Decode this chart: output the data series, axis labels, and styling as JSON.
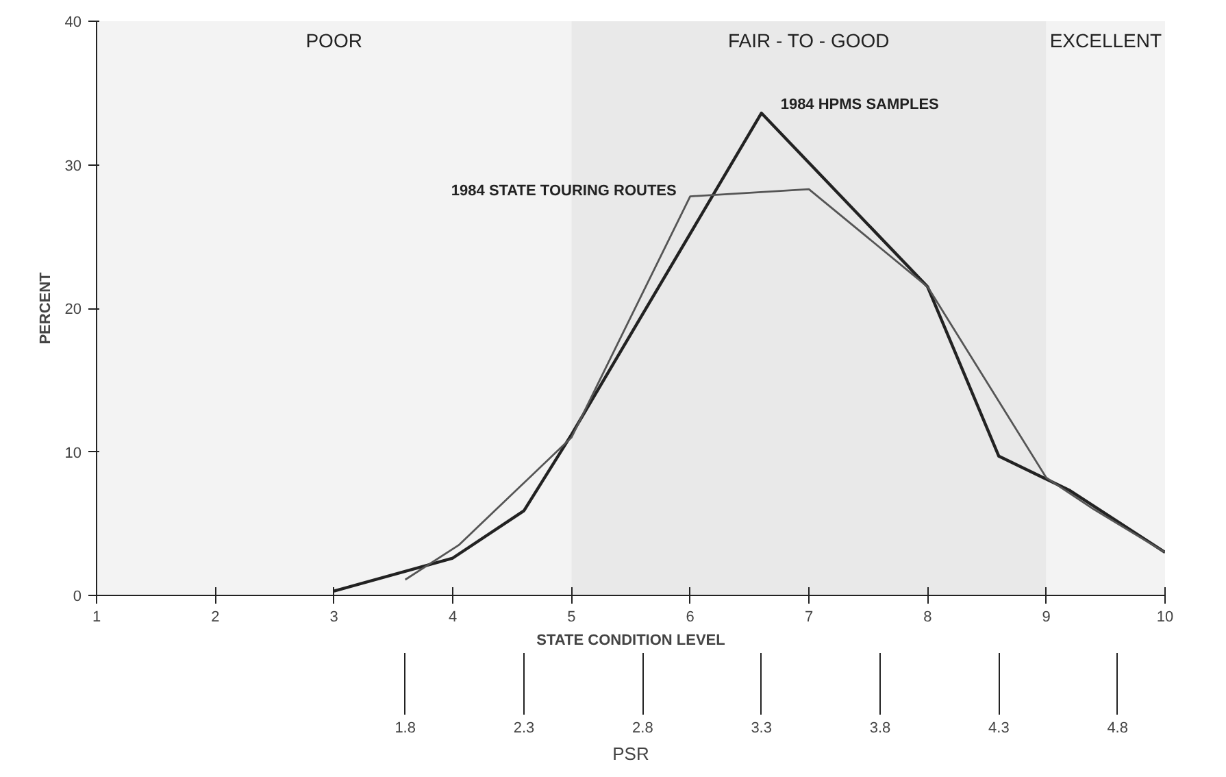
{
  "chart_data": {
    "type": "line",
    "xlabel": "STATE CONDITION LEVEL",
    "ylabel": "PERCENT",
    "x2label": "PSR",
    "xlim": [
      1,
      10
    ],
    "xticks": [
      1,
      2,
      3,
      4,
      5,
      6,
      7,
      8,
      9,
      10
    ],
    "ylim": [
      0,
      40
    ],
    "yticks": [
      0,
      10,
      20,
      30,
      40
    ],
    "x2lim": [
      0.5,
      5.0
    ],
    "x2ticks": [
      1.8,
      2.3,
      2.8,
      3.3,
      3.8,
      4.3,
      4.8
    ],
    "grid": false,
    "legend": false,
    "marker": "none",
    "line_style": "solid",
    "series": [
      {
        "name": "1984 HPMS SAMPLES",
        "color": "#222222",
        "x": [
          3.0,
          4.0,
          4.6,
          5.0,
          6.6,
          8.0,
          8.6,
          9.2,
          10.0
        ],
        "values": [
          0.3,
          2.6,
          5.9,
          11.2,
          33.6,
          21.5,
          9.7,
          7.3,
          3.0
        ]
      },
      {
        "name": "1984 STATE TOURING ROUTES",
        "color": "#555555",
        "x": [
          3.6,
          4.05,
          5.0,
          6.0,
          7.0,
          8.0,
          9.0,
          9.4,
          10.0
        ],
        "values": [
          1.1,
          3.5,
          11.0,
          27.8,
          28.3,
          21.5,
          8.2,
          6.0,
          3.0
        ]
      }
    ],
    "bands": [
      {
        "axis": "x",
        "from": 1,
        "to": 5,
        "label": "POOR"
      },
      {
        "axis": "x",
        "from": 5,
        "to": 9,
        "label": "FAIR - TO - GOOD"
      },
      {
        "axis": "x",
        "from": 9,
        "to": 10,
        "label": "EXCELLENT"
      }
    ]
  }
}
